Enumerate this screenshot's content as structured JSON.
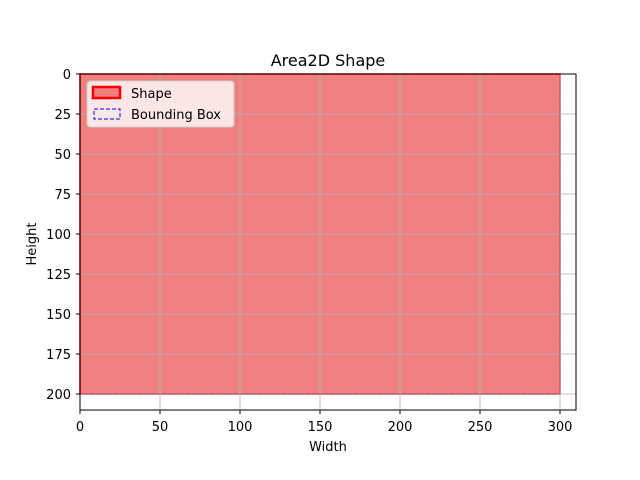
{
  "chart_data": {
    "type": "area",
    "title": "Area2D Shape",
    "xlabel": "Width",
    "ylabel": "Height",
    "xlim": [
      0,
      310
    ],
    "ylim": [
      210,
      0
    ],
    "y_inverted": true,
    "xticks": [
      0,
      50,
      100,
      150,
      200,
      250,
      300
    ],
    "yticks": [
      0,
      25,
      50,
      75,
      100,
      125,
      150,
      175,
      200
    ],
    "grid": true,
    "legend_position": "top-left",
    "series": [
      {
        "name": "Shape",
        "kind": "filled-rectangle",
        "x": [
          0,
          300,
          300,
          0
        ],
        "y": [
          0,
          0,
          200,
          200
        ],
        "fill": "#f08080",
        "edge": "#ff0000"
      },
      {
        "name": "Bounding Box",
        "kind": "dashed-rectangle",
        "x": [
          0,
          300,
          300,
          0
        ],
        "y": [
          0,
          0,
          200,
          200
        ],
        "edge": "#0000ff"
      }
    ]
  }
}
